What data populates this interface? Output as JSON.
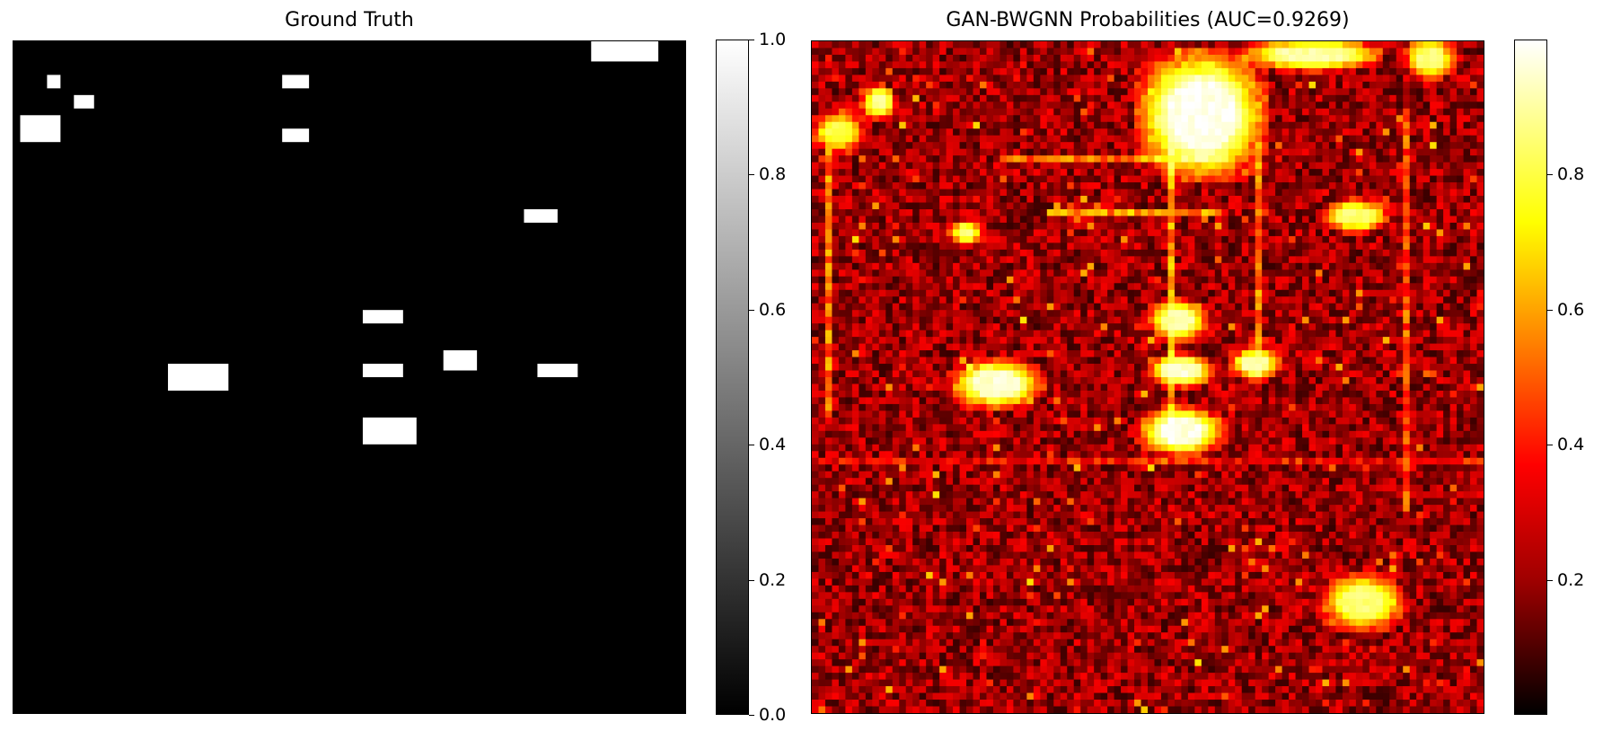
{
  "chart_data": [
    {
      "type": "heatmap",
      "title": "Ground Truth",
      "grid_size": [
        100,
        100
      ],
      "colormap": "gray",
      "value_range": [
        0.0,
        1.0
      ],
      "grid": false,
      "axes_visible": false,
      "background_value": 0,
      "positive_regions": [
        {
          "x": [
            86,
            95
          ],
          "y": [
            0,
            2
          ],
          "value": 1
        },
        {
          "x": [
            5,
            6
          ],
          "y": [
            5,
            6
          ],
          "value": 1
        },
        {
          "x": [
            9,
            11
          ],
          "y": [
            8,
            9
          ],
          "value": 1
        },
        {
          "x": [
            1,
            6
          ],
          "y": [
            11,
            14
          ],
          "value": 1
        },
        {
          "x": [
            40,
            43
          ],
          "y": [
            5,
            6
          ],
          "value": 1
        },
        {
          "x": [
            40,
            43
          ],
          "y": [
            13,
            14
          ],
          "value": 1
        },
        {
          "x": [
            76,
            80
          ],
          "y": [
            25,
            26
          ],
          "value": 1
        },
        {
          "x": [
            52,
            57
          ],
          "y": [
            40,
            41
          ],
          "value": 1
        },
        {
          "x": [
            52,
            57
          ],
          "y": [
            48,
            49
          ],
          "value": 1
        },
        {
          "x": [
            64,
            68
          ],
          "y": [
            46,
            48
          ],
          "value": 1
        },
        {
          "x": [
            78,
            83
          ],
          "y": [
            48,
            49
          ],
          "value": 1
        },
        {
          "x": [
            23,
            31
          ],
          "y": [
            48,
            51
          ],
          "value": 1
        },
        {
          "x": [
            52,
            59
          ],
          "y": [
            56,
            59
          ],
          "value": 1
        }
      ],
      "colorbar": {
        "ticks": [
          0.0,
          0.2,
          0.4,
          0.6,
          0.8,
          1.0
        ],
        "tick_labels": [
          "0.0",
          "0.2",
          "0.4",
          "0.6",
          "0.8",
          "1.0"
        ]
      }
    },
    {
      "type": "heatmap",
      "title": "GAN-BWGNN Probabilities (AUC=0.9269)",
      "grid_size": [
        100,
        100
      ],
      "colormap": "hot",
      "value_range": [
        0.0,
        1.0
      ],
      "grid": false,
      "axes_visible": false,
      "background_value_estimate": 0.22,
      "hotspots": [
        {
          "x": [
            50,
            65
          ],
          "y": [
            3,
            18
          ],
          "value": 0.98
        },
        {
          "x": [
            66,
            82
          ],
          "y": [
            0,
            3
          ],
          "value": 0.9
        },
        {
          "x": [
            89,
            94
          ],
          "y": [
            0,
            4
          ],
          "value": 0.85
        },
        {
          "x": [
            8,
            11
          ],
          "y": [
            7,
            10
          ],
          "value": 0.9
        },
        {
          "x": [
            1,
            6
          ],
          "y": [
            11,
            15
          ],
          "value": 0.8
        },
        {
          "x": [
            22,
            32
          ],
          "y": [
            48,
            53
          ],
          "value": 0.95
        },
        {
          "x": [
            51,
            57
          ],
          "y": [
            39,
            43
          ],
          "value": 0.9
        },
        {
          "x": [
            51,
            58
          ],
          "y": [
            47,
            50
          ],
          "value": 0.95
        },
        {
          "x": [
            63,
            68
          ],
          "y": [
            46,
            49
          ],
          "value": 0.9
        },
        {
          "x": [
            50,
            59
          ],
          "y": [
            55,
            60
          ],
          "value": 0.97
        },
        {
          "x": [
            77,
            84
          ],
          "y": [
            24,
            27
          ],
          "value": 0.85
        },
        {
          "x": [
            77,
            86
          ],
          "y": [
            80,
            86
          ],
          "value": 0.85
        },
        {
          "x": [
            21,
            24
          ],
          "y": [
            27,
            29
          ],
          "value": 0.85
        }
      ],
      "linear_features": [
        {
          "orientation": "horizontal",
          "y": 25,
          "x": [
            35,
            60
          ],
          "value": 0.6
        },
        {
          "orientation": "horizontal",
          "y": 17,
          "x": [
            28,
            62
          ],
          "value": 0.55
        },
        {
          "orientation": "vertical",
          "x": 53,
          "y": [
            15,
            58
          ],
          "value": 0.6
        },
        {
          "orientation": "vertical",
          "x": 66,
          "y": [
            15,
            50
          ],
          "value": 0.55
        },
        {
          "orientation": "vertical",
          "x": 88,
          "y": [
            10,
            70
          ],
          "value": 0.5
        },
        {
          "orientation": "vertical",
          "x": 2,
          "y": [
            15,
            55
          ],
          "value": 0.55
        },
        {
          "orientation": "horizontal",
          "y": 62,
          "x": [
            0,
            100
          ],
          "value": 0.4
        }
      ],
      "colorbar": {
        "ticks": [
          0.2,
          0.4,
          0.6,
          0.8
        ],
        "tick_labels": [
          "0.2",
          "0.4",
          "0.6",
          "0.8"
        ]
      }
    }
  ]
}
